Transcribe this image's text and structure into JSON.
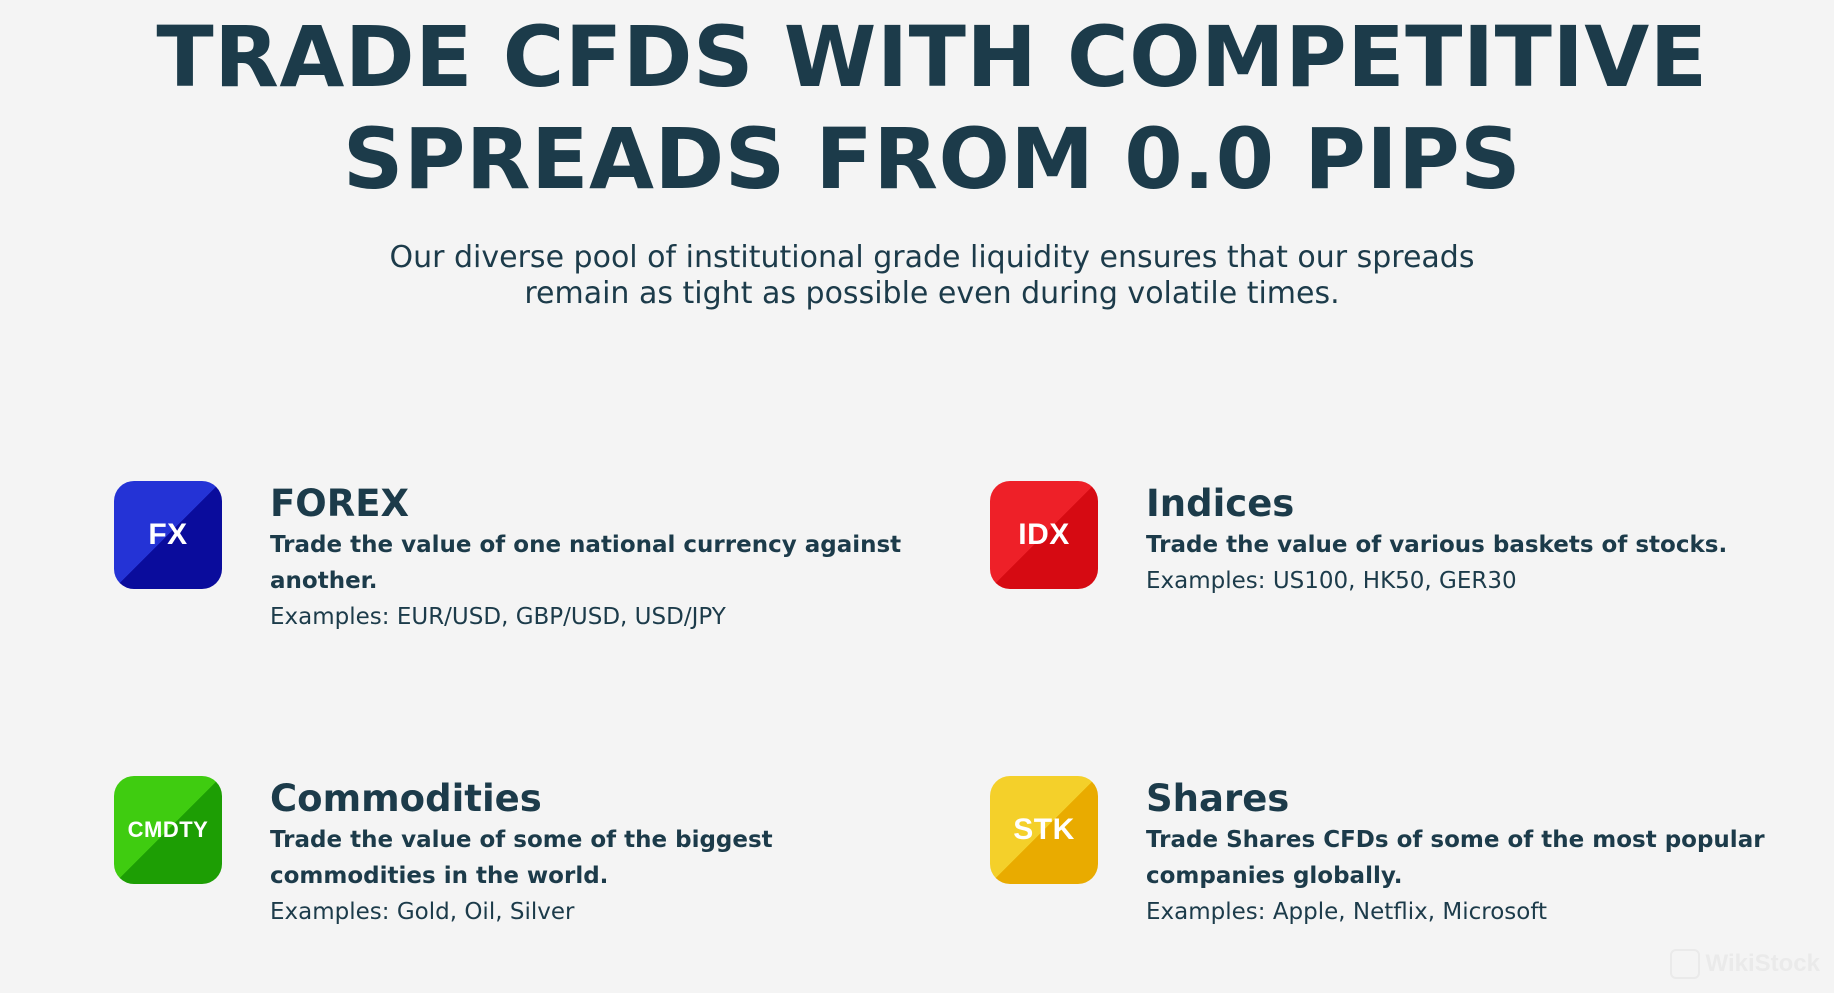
{
  "hero": {
    "title_line1": "TRADE CFDS WITH COMPETITIVE",
    "title_line2": "SPREADS FROM 0.0 PIPS",
    "subtitle_line1": "Our diverse pool of institutional grade liquidity ensures that our spreads",
    "subtitle_line2": "remain as tight as possible even during volatile times."
  },
  "products": [
    {
      "code": "FX",
      "title": "FOREX",
      "description": "Trade the value of one national currency against another.",
      "examples": "Examples: EUR/USD, GBP/USD, USD/JPY",
      "color_light": "#2433d6",
      "color_dark": "#0a0c9c"
    },
    {
      "code": "IDX",
      "title": "Indices",
      "description": "Trade the value of various baskets of stocks.",
      "examples": "Examples: US100, HK50, GER30",
      "color_light": "#ee2028",
      "color_dark": "#d60a12"
    },
    {
      "code": "CMDTY",
      "title": "Commodities",
      "description": "Trade the value of some of the biggest commodities in the world.",
      "examples": "Examples: Gold, Oil, Silver",
      "color_light": "#3fcc10",
      "color_dark": "#1d9e04"
    },
    {
      "code": "STK",
      "title": "Shares",
      "description": "Trade Shares CFDs of some of the most popular companies globally.",
      "examples": "Examples: Apple, Netflix, Microsoft",
      "color_light": "#f4d02a",
      "color_dark": "#e9ab00"
    }
  ],
  "watermark": {
    "icon": "wikistock-logo-icon",
    "text": "WikiStock"
  }
}
